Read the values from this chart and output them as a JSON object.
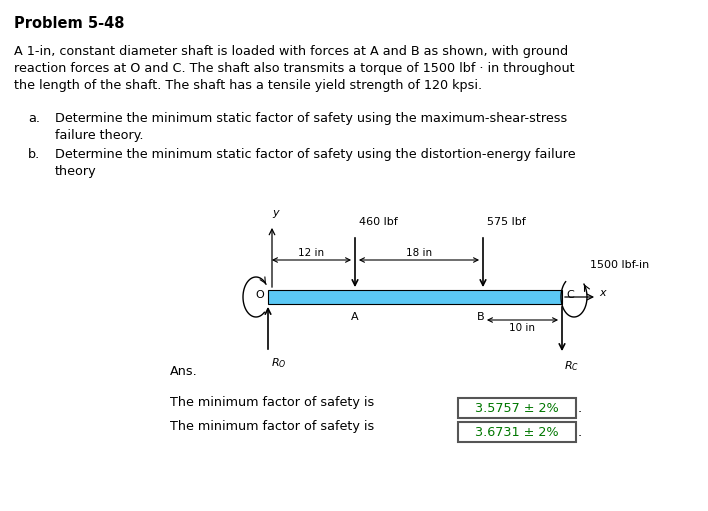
{
  "title": "Problem 5-48",
  "bg_color": "#ffffff",
  "body_text": [
    "A 1-in, constant diameter shaft is loaded with forces at A and B as shown, with ground",
    "reaction forces at O and C. The shaft also transmits a torque of 1500 lbf · in throughout",
    "the length of the shaft. The shaft has a tensile yield strength of 120 kpsi."
  ],
  "item_a1": "Determine the minimum static factor of safety using the maximum-shear-stress",
  "item_a2": "failure theory.",
  "item_b1": "Determine the minimum static factor of safety using the distortion-energy failure",
  "item_b2": "theory",
  "ans_label": "Ans.",
  "result1_prefix": "The minimum factor of safety is",
  "result1_value": "3.5757 ± 2%",
  "result1_suffix": ".",
  "result2_prefix": "The minimum factor of safety is",
  "result2_value": "3.6731 ± 2%",
  "result2_suffix": ".",
  "shaft_color": "#5bc8f5",
  "label_O": "O",
  "label_A": "A",
  "label_B": "B",
  "label_C": "C",
  "label_x": "x",
  "label_y": "y",
  "label_Ro": "$R_O$",
  "label_Rc": "$R_C$",
  "label_460": "460 lbf",
  "label_575": "575 lbf",
  "label_1500": "1500 lbf-in",
  "label_12in": "← 12 in →",
  "label_18in": "← 18 in →",
  "label_10in": "← 10 in→",
  "result_text_color": "#007700",
  "box_edge_color": "#555555"
}
